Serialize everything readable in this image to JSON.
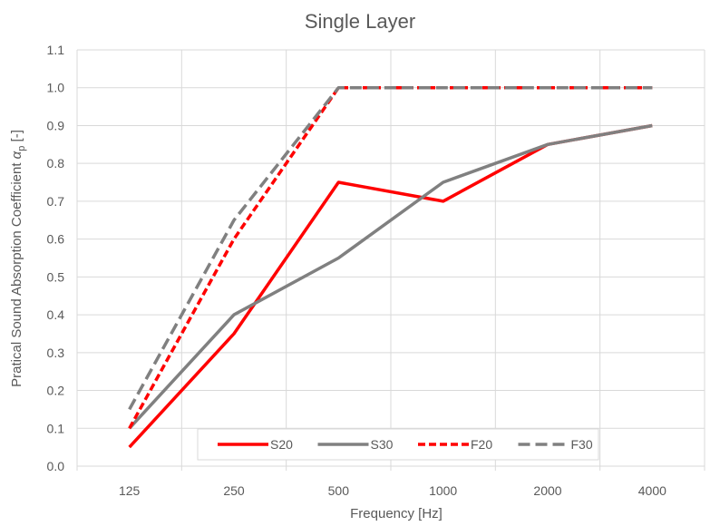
{
  "chart_data": {
    "type": "line",
    "title": "Single Layer",
    "xlabel": "Frequency [Hz]",
    "ylabel_main": "Pratical Sound Absorption Coefficient ",
    "ylabel_symbol": "α",
    "ylabel_sub": "p",
    "ylabel_unit": " [-]",
    "categories": [
      "125",
      "250",
      "500",
      "1000",
      "2000",
      "4000"
    ],
    "ylim": [
      0,
      1.1
    ],
    "y_ticks": [
      "0.0",
      "0.1",
      "0.2",
      "0.3",
      "0.4",
      "0.5",
      "0.6",
      "0.7",
      "0.8",
      "0.9",
      "1.0",
      "1.1"
    ],
    "grid": true,
    "legend_position": "bottom-inside",
    "series": [
      {
        "name": "S20",
        "values": [
          0.05,
          0.35,
          0.75,
          0.7,
          0.85,
          0.9
        ],
        "color": "#ff0000",
        "dash": "solid"
      },
      {
        "name": "S30",
        "values": [
          0.1,
          0.4,
          0.55,
          0.75,
          0.85,
          0.9
        ],
        "color": "#808080",
        "dash": "solid"
      },
      {
        "name": "F20",
        "values": [
          0.1,
          0.6,
          1.0,
          1.0,
          1.0,
          1.0
        ],
        "color": "#ff0000",
        "dash": "dashed"
      },
      {
        "name": "F30",
        "values": [
          0.15,
          0.65,
          1.0,
          1.0,
          1.0,
          1.0
        ],
        "color": "#808080",
        "dash": "dashed"
      }
    ]
  }
}
